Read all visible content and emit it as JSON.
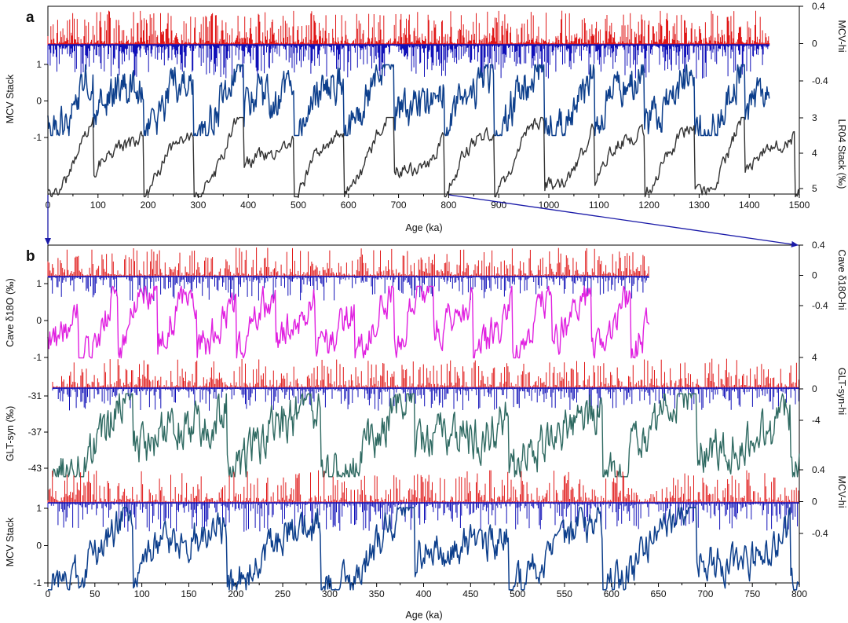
{
  "chart_data": [
    {
      "panel": "a",
      "type": "line",
      "xlabel": "Age (ka)",
      "xlim": [
        0,
        1500
      ],
      "xticks": [
        0,
        100,
        200,
        300,
        400,
        500,
        600,
        700,
        800,
        900,
        1000,
        1100,
        1200,
        1300,
        1400,
        1500
      ],
      "series": [
        {
          "name": "MCV-hi",
          "color": "#e01818",
          "neg_color": "#1010b8",
          "axis_label": "MCV-hi",
          "ylim": [
            -0.4,
            0.4
          ],
          "yticks": [
            "0.4",
            "0",
            "-0.4"
          ],
          "x_range": [
            0,
            1440
          ]
        },
        {
          "name": "MCV Stack",
          "color": "#0d3f8c",
          "axis_label": "MCV Stack",
          "ylim": [
            -1,
            1
          ],
          "yticks": [
            "1",
            "0",
            "-1"
          ],
          "x_range": [
            0,
            1440
          ]
        },
        {
          "name": "LR04 Stack",
          "color": "#333333",
          "axis_label": "LR04 Stack (‰)",
          "ylim": [
            3,
            5
          ],
          "yticks": [
            "3",
            "4",
            "5"
          ],
          "x_range": [
            0,
            1500
          ]
        }
      ]
    },
    {
      "panel": "b",
      "type": "line",
      "xlabel": "Age (ka)",
      "xlim": [
        0,
        800
      ],
      "xticks": [
        0,
        50,
        100,
        150,
        200,
        250,
        300,
        350,
        400,
        450,
        500,
        550,
        600,
        650,
        700,
        750,
        800
      ],
      "series": [
        {
          "name": "Cave δ18O-hi",
          "color": "#e01818",
          "neg_color": "#1010b8",
          "axis_label": "Cave δ18O-hi",
          "ylim": [
            -0.4,
            0.4
          ],
          "yticks": [
            "0.4",
            "0",
            "-0.4"
          ],
          "x_range": [
            0,
            640
          ]
        },
        {
          "name": "Cave δ18O",
          "color": "#e020e0",
          "axis_label": "Cave δ18O (‰)",
          "ylim": [
            -1,
            1
          ],
          "yticks": [
            "1",
            "0",
            "-1"
          ],
          "x_range": [
            0,
            640
          ]
        },
        {
          "name": "GLT-syn-hi",
          "color": "#e01818",
          "neg_color": "#1010b8",
          "axis_label": "GLT-syn-hi",
          "ylim": [
            -4,
            4
          ],
          "yticks": [
            "4",
            "0",
            "-4"
          ],
          "x_range": [
            5,
            800
          ]
        },
        {
          "name": "GLT-syn",
          "color": "#2f6a62",
          "axis_label": "GLT-syn (‰)",
          "ylim": [
            -43,
            -31
          ],
          "yticks": [
            "-31",
            "-37",
            "-43"
          ],
          "x_range": [
            5,
            800
          ]
        },
        {
          "name": "MCV-hi",
          "color": "#e01818",
          "neg_color": "#1010b8",
          "axis_label": "MCV-hi",
          "ylim": [
            -0.4,
            0.4
          ],
          "yticks": [
            "0.4",
            "0",
            "-0.4"
          ],
          "x_range": [
            0,
            800
          ]
        },
        {
          "name": "MCV Stack",
          "color": "#0d3f8c",
          "axis_label": "MCV Stack",
          "ylim": [
            -1,
            1
          ],
          "yticks": [
            "1",
            "0",
            "-1"
          ],
          "x_range": [
            0,
            800
          ]
        }
      ]
    }
  ],
  "labels": {
    "panel_a": "a",
    "panel_b": "b",
    "a_xlabel": "Age (ka)",
    "b_xlabel": "Age (ka)",
    "a_left_label": "MCV Stack",
    "a_right_top_label": "MCV-hi",
    "a_right_bottom_label": "LR04 Stack (‰)",
    "b_cave_label": "Cave δ18O (‰)",
    "b_cave_hi_label": "Cave δ18O-hi",
    "b_glt_label": "GLT-syn (‰)",
    "b_glt_hi_label": "GLT-syn-hi",
    "b_mcv_label": "MCV Stack",
    "b_mcv_hi_label": "MCV-hi"
  },
  "zoom_link": {
    "from_ka": [
      0,
      800
    ],
    "to_panel": "b"
  }
}
